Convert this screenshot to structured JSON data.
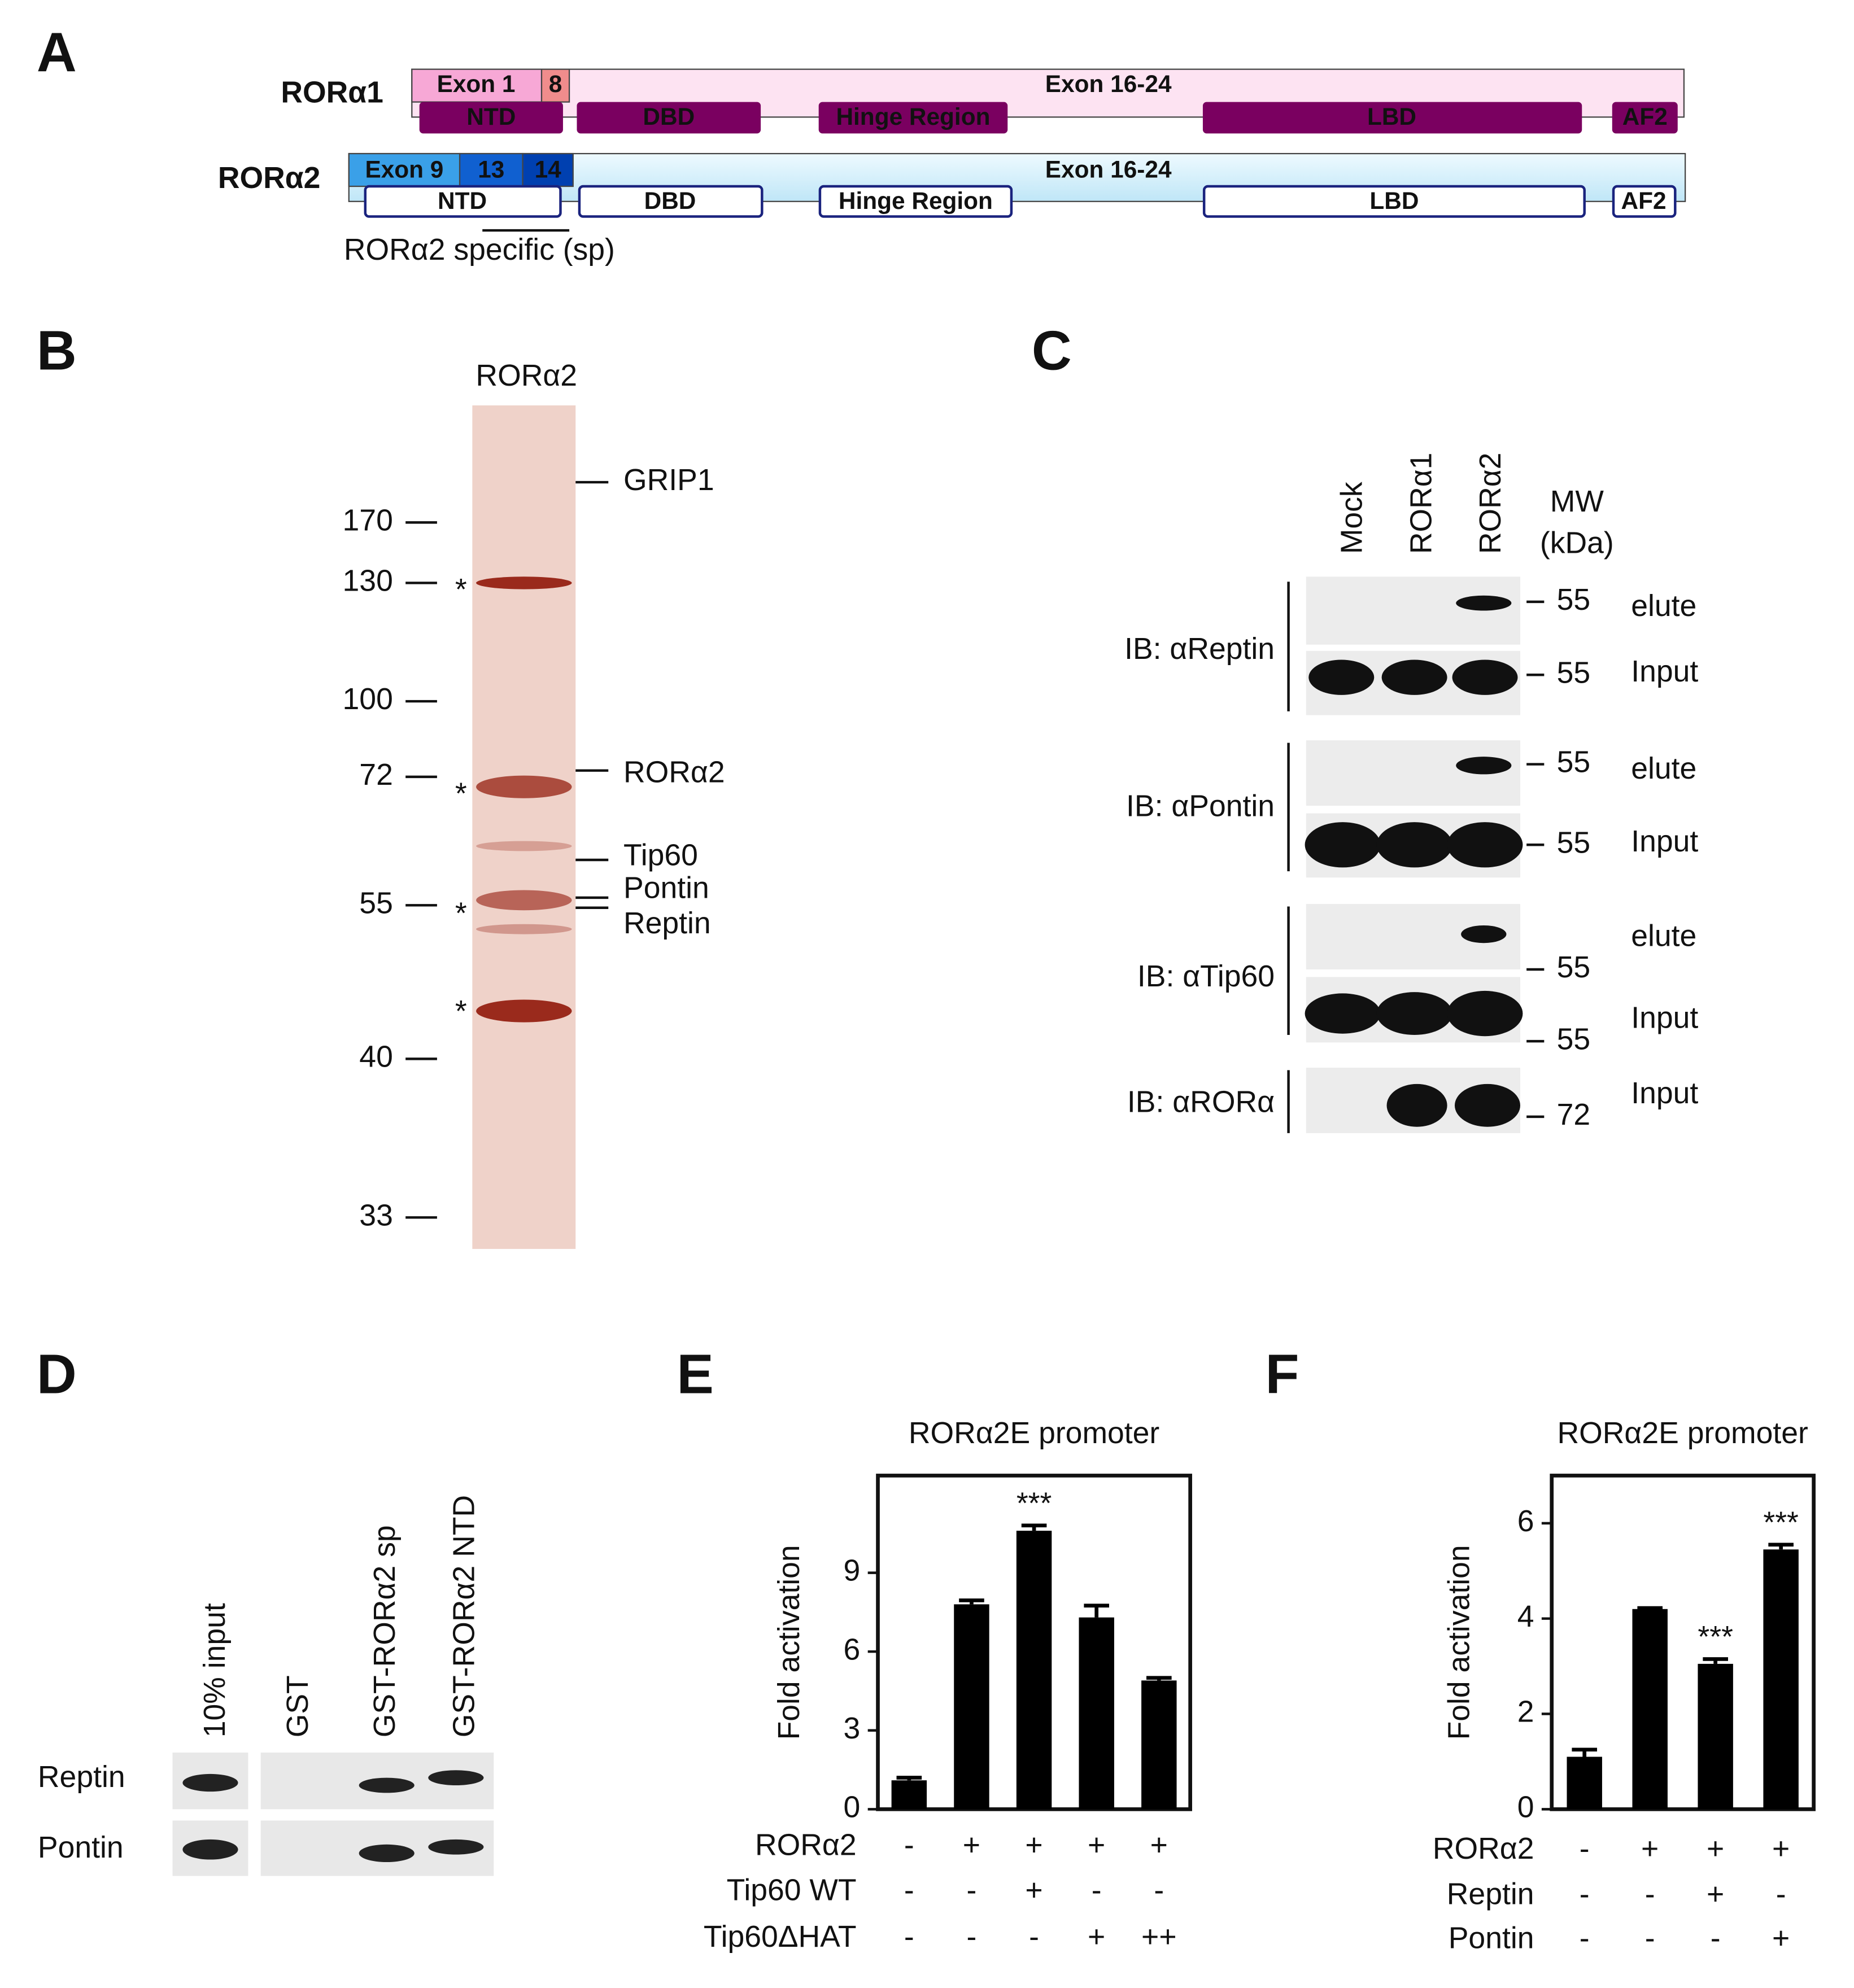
{
  "A": {
    "label": "A",
    "isoforms": [
      {
        "name": "RORα1",
        "exons": [
          "Exon 1",
          "8",
          "Exon 16-24"
        ],
        "domains": [
          "NTD",
          "DBD",
          "Hinge Region",
          "LBD",
          "AF2"
        ]
      },
      {
        "name": "RORα2",
        "exons": [
          "Exon 9",
          "13",
          "14",
          "Exon 16-24"
        ],
        "domains": [
          "NTD",
          "DBD",
          "Hinge Region",
          "LBD",
          "AF2"
        ]
      }
    ],
    "note": "RORα2 specific (sp)"
  },
  "B": {
    "label": "B",
    "lane": "RORα2",
    "markers": [
      "170",
      "130",
      "100",
      "72",
      "55",
      "40",
      "33"
    ],
    "bands": [
      "GRIP1",
      "RORα2",
      "Tip60",
      "Pontin",
      "Reptin"
    ],
    "asterisk": "*"
  },
  "C": {
    "label": "C",
    "lanes": [
      "Mock",
      "RORα1",
      "RORα2"
    ],
    "mw": [
      "MW",
      "(kDa)"
    ],
    "blots": [
      {
        "antibody": "IB: αReptin",
        "rows": [
          "elute",
          "Input"
        ],
        "mw": [
          "55",
          "55"
        ]
      },
      {
        "antibody": "IB: αPontin",
        "rows": [
          "elute",
          "Input"
        ],
        "mw": [
          "55",
          "55"
        ]
      },
      {
        "antibody": "IB: αTip60",
        "rows": [
          "elute",
          "Input"
        ],
        "mw": [
          "55",
          "55"
        ]
      },
      {
        "antibody": "IB: αRORα",
        "rows": [
          "Input"
        ],
        "mw": [
          "72"
        ]
      }
    ]
  },
  "D": {
    "label": "D",
    "lanes": [
      "10% input",
      "GST",
      "GST-RORα2 sp",
      "GST-RORα2 NTD"
    ],
    "rows": [
      "Reptin",
      "Pontin"
    ]
  },
  "E": {
    "label": "E",
    "chart_data": {
      "type": "bar",
      "title": "RORα2E promoter",
      "y_label": "Fold activation",
      "values": [
        1.1,
        7.8,
        10.6,
        7.3,
        4.9
      ],
      "errors": [
        0.1,
        0.15,
        0.2,
        0.45,
        0.1
      ],
      "significance": [
        null,
        null,
        "***",
        null,
        null
      ],
      "color": "#000000",
      "ylim": [
        0,
        12.7
      ],
      "yticks": [
        0,
        3,
        6,
        9
      ],
      "conditions": [
        {
          "name": "RORα2",
          "values": [
            "-",
            "+",
            "+",
            "+",
            "+"
          ]
        },
        {
          "name": "Tip60 WT",
          "values": [
            "-",
            "-",
            "+",
            "-",
            "-"
          ]
        },
        {
          "name": "Tip60ΔHAT",
          "values": [
            "-",
            "-",
            "-",
            "+",
            "++"
          ]
        }
      ]
    }
  },
  "F": {
    "label": "F",
    "chart_data": {
      "type": "bar",
      "title": "RORα2E promoter",
      "y_label": "Fold activation",
      "values": [
        1.1,
        4.2,
        3.05,
        5.45
      ],
      "errors": [
        0.15,
        0.02,
        0.1,
        0.1
      ],
      "significance": [
        null,
        null,
        "***",
        "***"
      ],
      "color": "#000000",
      "ylim": [
        0,
        7
      ],
      "yticks": [
        0,
        2,
        4,
        6
      ],
      "conditions": [
        {
          "name": "RORα2",
          "values": [
            "-",
            "+",
            "+",
            "+"
          ]
        },
        {
          "name": "Reptin",
          "values": [
            "-",
            "-",
            "+",
            "-"
          ]
        },
        {
          "name": "Pontin",
          "values": [
            "-",
            "-",
            "-",
            "+"
          ]
        }
      ]
    }
  }
}
